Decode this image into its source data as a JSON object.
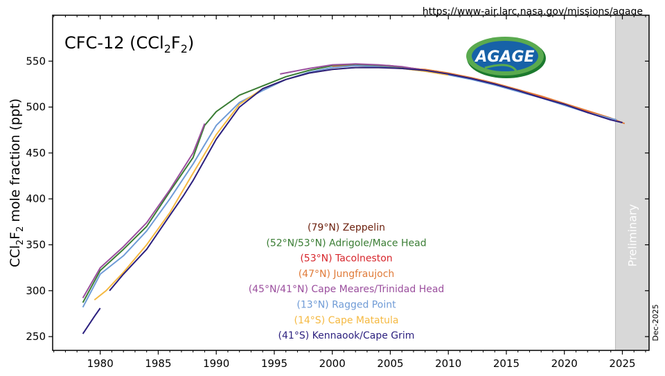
{
  "url": "https://www-air.larc.nasa.gov/missions/agage",
  "date_stamp": "Dec-2025",
  "logo_text": "AGAGE",
  "preliminary_label": "Preliminary",
  "chart_data": {
    "type": "line",
    "title": "CFC-12 (CCl2F2)",
    "title_parts": {
      "a": "CFC-12 (CCl",
      "sub1": "2",
      "b": "F",
      "sub2": "2",
      "c": ")"
    },
    "ylabel": "CCl2F2 mole fraction (ppt)",
    "ylabel_parts": {
      "a": "CCl",
      "sub1": "2",
      "b": "F",
      "sub2": "2",
      "c": " mole fraction (ppt)"
    },
    "xlabel": "",
    "xlim": [
      1975.9,
      2027.3
    ],
    "ylim": [
      235,
      600
    ],
    "xticks": [
      1980,
      1985,
      1990,
      1995,
      2000,
      2005,
      2010,
      2015,
      2020,
      2025
    ],
    "yticks": [
      250,
      300,
      350,
      400,
      450,
      500,
      550
    ],
    "preliminary_range": [
      2024.4,
      2027.3
    ],
    "grid": false,
    "legend_placement": "bottom-center",
    "series": [
      {
        "name": "(79°N) Zeppelin",
        "color": "#6b1f0c",
        "x": [
          2001,
          2003,
          2005,
          2007,
          2009,
          2011,
          2013,
          2015,
          2017,
          2019,
          2021,
          2023,
          2024.5
        ],
        "y": [
          546,
          546,
          545,
          542,
          539,
          534,
          528,
          522,
          515,
          507,
          499,
          491,
          486
        ]
      },
      {
        "name": "(52°N/53°N) Adrigole/Mace Head",
        "color": "#3a7d34",
        "x": [
          1978.5,
          1980,
          1982,
          1984,
          1986,
          1988,
          1989,
          1990,
          1992,
          1994,
          1996,
          1998,
          2000,
          2002,
          2004,
          2006,
          2008,
          2010,
          2012,
          2014,
          2016,
          2018,
          2020,
          2022,
          2024,
          2025
        ],
        "y": [
          287,
          322,
          345,
          370,
          408,
          445,
          480,
          495,
          513,
          523,
          533,
          540,
          545,
          546,
          545,
          543,
          540,
          536,
          531,
          525,
          518,
          511,
          503,
          495,
          487,
          483
        ]
      },
      {
        "name": "(53°N) Tacolneston",
        "color": "#d7262c",
        "x": [
          2013,
          2015,
          2017,
          2019,
          2021,
          2023,
          2025
        ],
        "y": [
          529,
          522,
          515,
          507,
          499,
          491,
          483
        ]
      },
      {
        "name": "(47°N) Jungfraujoch",
        "color": "#e07b39",
        "x": [
          2000,
          2002,
          2004,
          2006,
          2008,
          2010,
          2012,
          2014,
          2016,
          2018,
          2020,
          2022,
          2024,
          2025.2
        ],
        "y": [
          544,
          545,
          544,
          542,
          541,
          537,
          532,
          526,
          519,
          512,
          504,
          496,
          488,
          482
        ]
      },
      {
        "name": "(45°N/41°N) Cape Meares/Trinidad Head",
        "color": "#9b4f9e",
        "x": [
          1978.5,
          1980,
          1982,
          1984,
          1986,
          1988,
          1989,
          null,
          1995.5,
          1998,
          2000,
          2002,
          2004,
          2006,
          2008
        ],
        "y": [
          292,
          325,
          348,
          374,
          410,
          450,
          482,
          null,
          536,
          542,
          546,
          547,
          546,
          544,
          540
        ]
      },
      {
        "name": "(13°N) Ragged Point",
        "color": "#6f9bd6",
        "x": [
          1978.5,
          1980,
          1982,
          1984,
          1986,
          1988,
          1990,
          1992,
          1994,
          1996,
          1998,
          2000,
          2002,
          2004,
          2006,
          2008,
          2010,
          2012,
          2014,
          2016,
          2018,
          2020,
          2022,
          2024.5
        ],
        "y": [
          282,
          318,
          338,
          365,
          400,
          438,
          480,
          505,
          518,
          530,
          538,
          543,
          545,
          544,
          542,
          539,
          535,
          530,
          524,
          517,
          510,
          502,
          494,
          486
        ]
      },
      {
        "name": "(14°S) Cape Matatula",
        "color": "#f5b942",
        "x": [
          1979.5,
          1980.5,
          1982,
          1984,
          1986,
          1988,
          1990,
          1992,
          1994,
          1996,
          1998,
          2000,
          2002,
          2004,
          2006,
          2008,
          2010
        ],
        "y": [
          290,
          300,
          320,
          350,
          385,
          428,
          470,
          503,
          520,
          530,
          537,
          541,
          543,
          543,
          542,
          539,
          535
        ]
      },
      {
        "name": "(41°S) Kennaook/Cape Grim",
        "color": "#2b1f7e",
        "x": [
          1978.5,
          1979.5,
          1980,
          null,
          1980.8,
          1982,
          1984,
          1986,
          1987.2,
          1988,
          1990,
          1992,
          1994,
          1996,
          1998,
          2000,
          2002,
          2004,
          2006,
          2008,
          2010,
          2012,
          2014,
          2016,
          2018,
          2020,
          2022,
          2024,
          2025
        ],
        "y": [
          253,
          272,
          281,
          null,
          300,
          318,
          345,
          382,
          404,
          420,
          465,
          500,
          520,
          530,
          537,
          541,
          543,
          543,
          542,
          540,
          536,
          531,
          525,
          518,
          510,
          503,
          494,
          486,
          483
        ]
      }
    ]
  }
}
